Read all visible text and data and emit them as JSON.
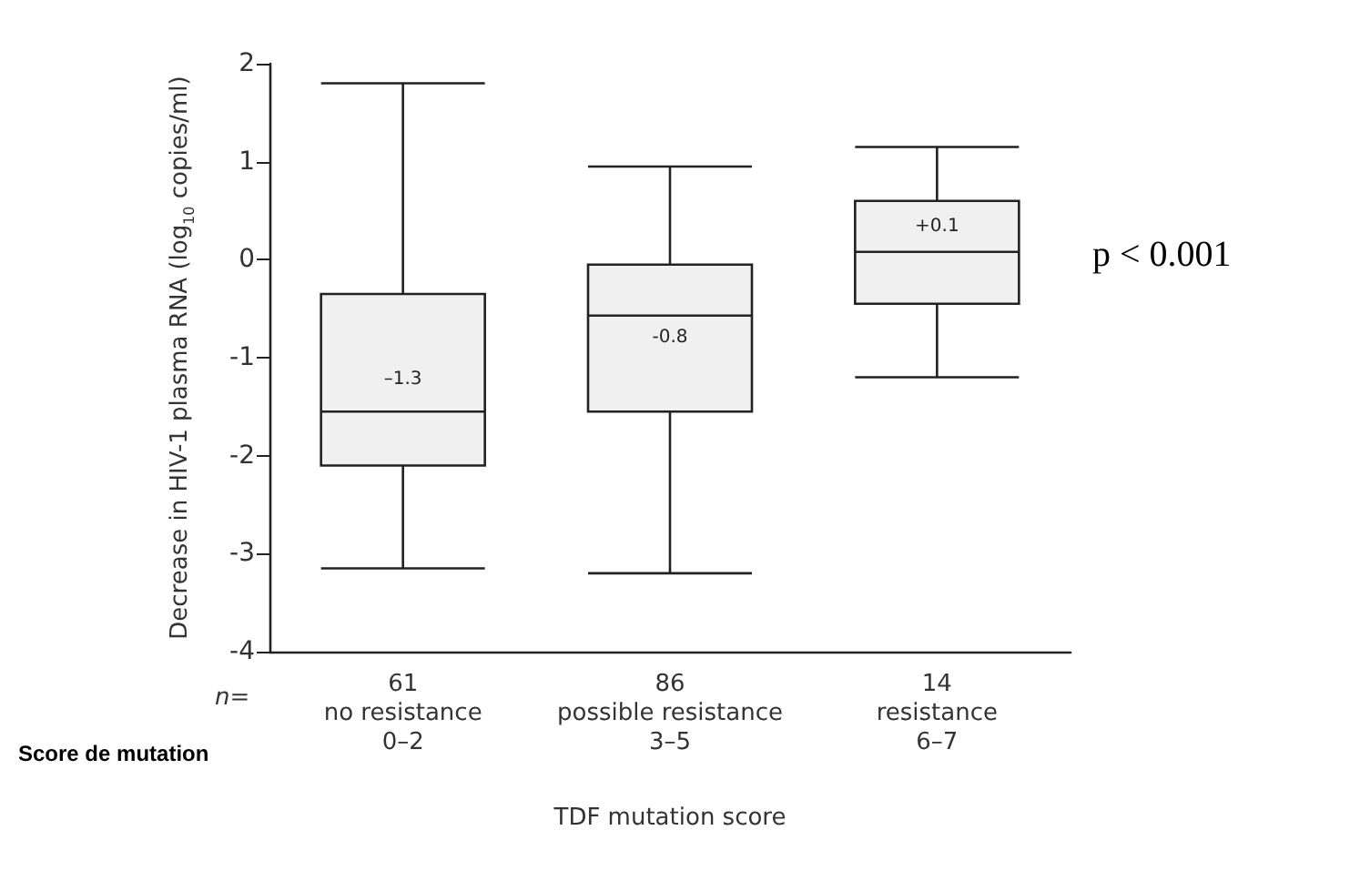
{
  "chart_data": {
    "type": "box",
    "xlabel": "TDF mutation score",
    "ylabel": "Decrease in HIV-1 plasma RNA (log$_{10}$ copies/ml)",
    "categories": [
      "61\nno resistance\n0–2",
      "86\npossible resistance\n3–5",
      "14\nresistance\n6–7"
    ],
    "boxes": [
      {
        "low": -3.15,
        "q1": -2.1,
        "median": -1.55,
        "q3": -0.35,
        "high": 1.8
      },
      {
        "low": -3.2,
        "q1": -1.55,
        "median": -0.57,
        "q3": -0.05,
        "high": 0.95
      },
      {
        "low": -1.2,
        "q1": -0.45,
        "median": 0.08,
        "q3": 0.6,
        "high": 1.15
      }
    ],
    "color": "#f0f0f0",
    "ylim": [
      -4,
      2
    ],
    "yticks": [
      -4,
      -3,
      -2,
      -1,
      0,
      1,
      2
    ],
    "grid": false,
    "annotations": [
      "n=",
      "Score de mutation",
      "p < 0.001",
      "–1.3",
      "-0.8",
      "+0.1"
    ]
  }
}
